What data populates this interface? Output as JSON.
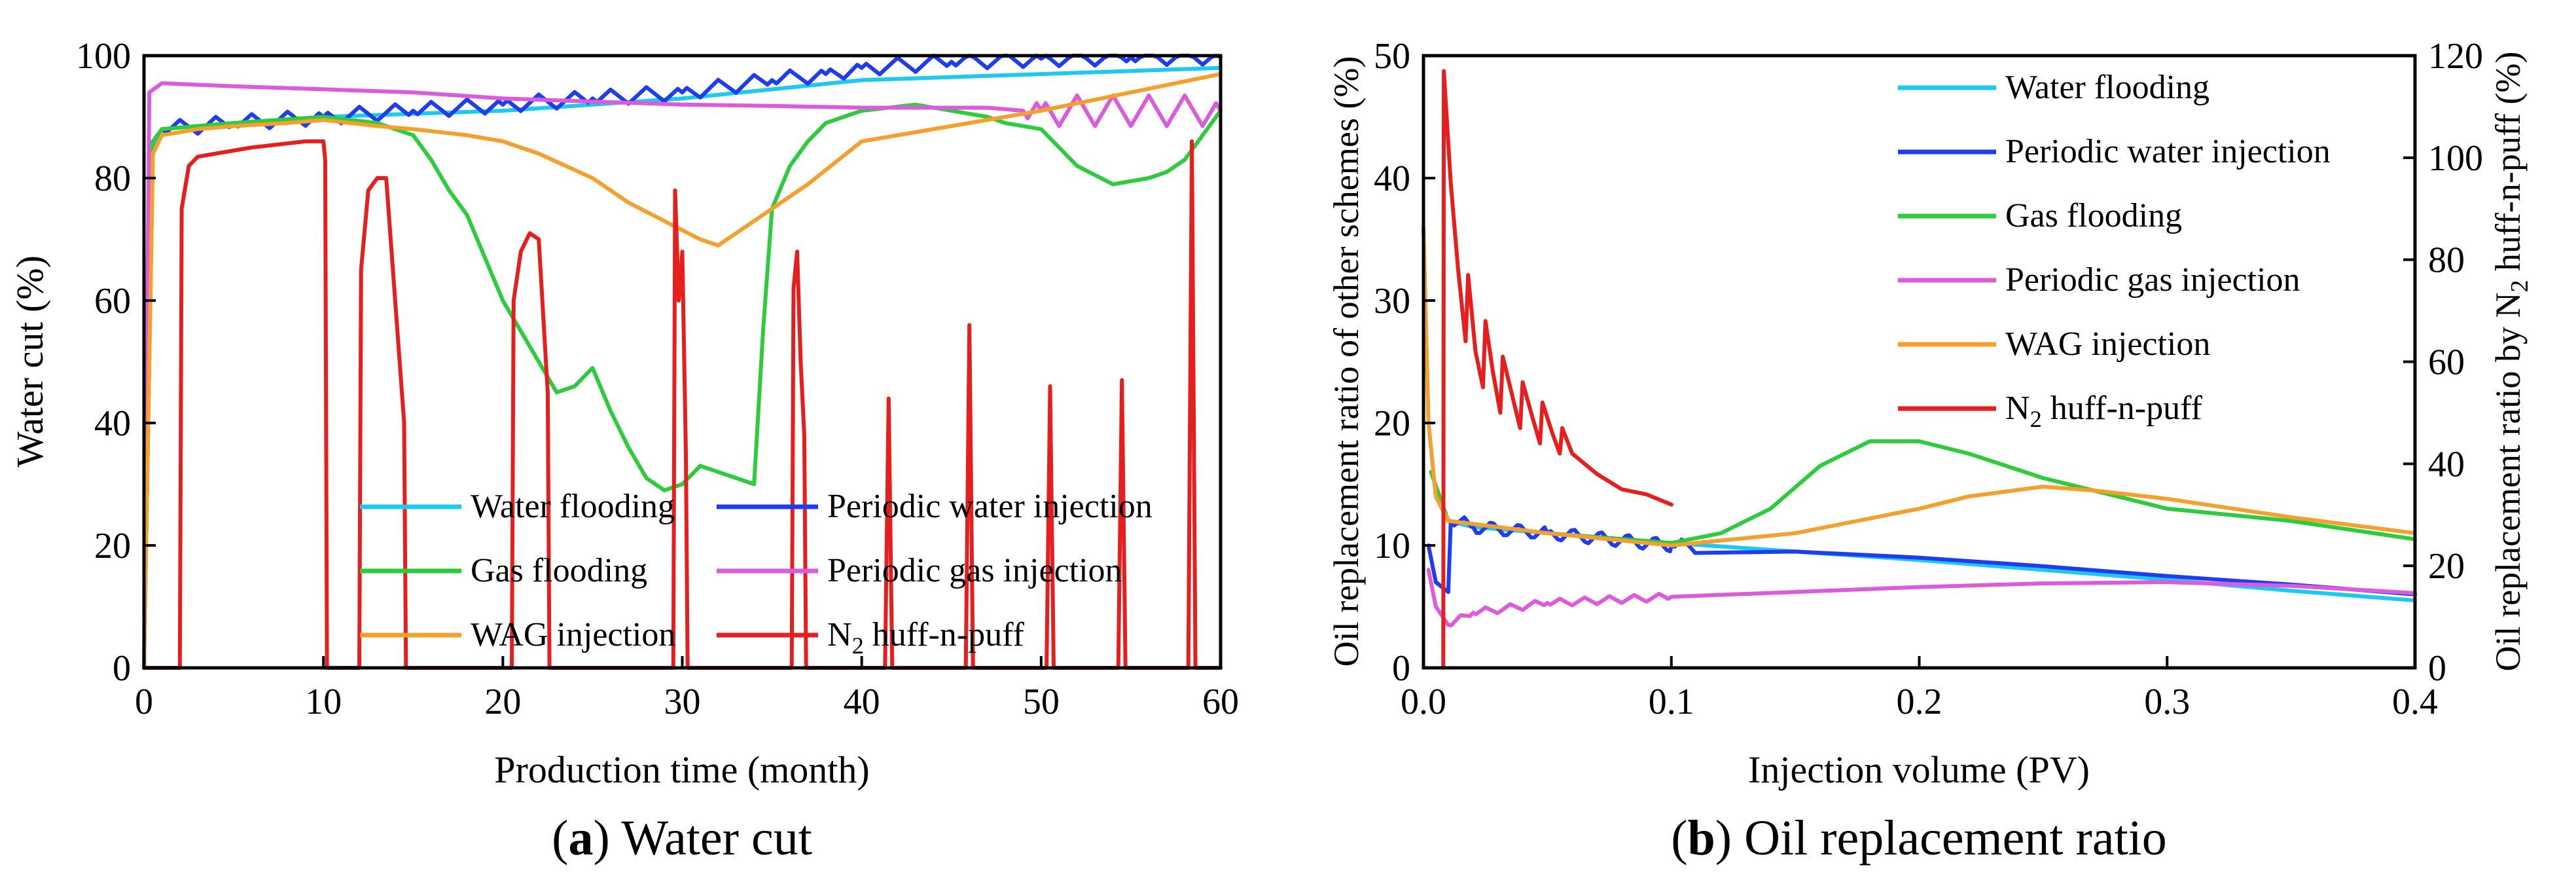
{
  "colors": {
    "water_flooding": "#1ec8f0",
    "periodic_water": "#1e3cf0",
    "gas_flooding": "#2dcc3c",
    "periodic_gas": "#dc5adc",
    "wag": "#f5a02d",
    "n2": "#e61e1e"
  },
  "chart_data": [
    {
      "type": "line",
      "caption_prefix": "(",
      "caption_bold": "a",
      "caption_rest": ") Water cut",
      "xlabel": "Production time (month)",
      "ylabel": "Water cut (%)",
      "xlim": [
        0,
        60
      ],
      "ylim": [
        0,
        100
      ],
      "x_ticks": [
        "0",
        "10",
        "20",
        "30",
        "40",
        "50",
        "60"
      ],
      "y_ticks": [
        "0",
        "20",
        "40",
        "60",
        "80",
        "100"
      ],
      "legend": {
        "placement": "bottom-center",
        "entries": [
          {
            "label": "Water flooding",
            "color_key": "water_flooding"
          },
          {
            "label": "Periodic water injection",
            "color_key": "periodic_water"
          },
          {
            "label": "Gas flooding",
            "color_key": "gas_flooding"
          },
          {
            "label": "Periodic gas injection",
            "color_key": "periodic_gas"
          },
          {
            "label": "WAG injection",
            "color_key": "wag"
          },
          {
            "label": "N",
            "sub": "2",
            "rest": " huff-n-puff",
            "color_key": "n2"
          }
        ]
      },
      "series": [
        {
          "key": "water_flooding",
          "x": [
            0,
            0.5,
            1,
            5,
            10,
            15,
            20,
            25,
            30,
            35,
            40,
            45,
            50,
            55,
            60
          ],
          "y": [
            0,
            85,
            88,
            89,
            90,
            90.5,
            91,
            92,
            93,
            94.5,
            96,
            96.5,
            97,
            97.5,
            98
          ]
        },
        {
          "key": "periodic_water",
          "x": [
            0,
            0.5,
            1,
            5,
            10,
            15,
            20,
            25,
            30,
            35,
            38,
            40,
            45,
            50,
            55,
            60
          ],
          "y": [
            0,
            86,
            88,
            89,
            90,
            91,
            92,
            93,
            94,
            96,
            97,
            98,
            99,
            99.5,
            99.7,
            99.8
          ],
          "oscillation": {
            "from": 1,
            "to": 60,
            "period": 2,
            "amplitude": 2.5
          }
        },
        {
          "key": "gas_flooding",
          "x": [
            0,
            0.5,
            1,
            5,
            10,
            13,
            15,
            16,
            17,
            18,
            19,
            20,
            21,
            22,
            23,
            24,
            25,
            26,
            27,
            28,
            29,
            30,
            31,
            32,
            33,
            34,
            34.5,
            35,
            36,
            37,
            38,
            40,
            43,
            45,
            47,
            48,
            50,
            52,
            54,
            56,
            57,
            58,
            59,
            60
          ],
          "y": [
            0,
            86,
            88,
            89,
            90,
            89,
            87,
            83,
            78,
            74,
            67,
            60,
            55,
            50,
            45,
            46,
            49,
            42,
            36,
            31,
            29,
            30,
            33,
            32,
            31,
            30,
            55,
            75,
            82,
            86,
            89,
            91,
            92,
            91,
            90,
            89,
            88,
            82,
            79,
            80,
            81,
            83,
            87,
            91
          ]
        },
        {
          "key": "periodic_gas",
          "x": [
            0,
            0.3,
            1,
            5,
            10,
            15,
            20,
            25,
            30,
            35,
            40,
            45,
            47,
            49,
            50,
            60
          ],
          "y": [
            0,
            94,
            95.5,
            95,
            94.5,
            94,
            93,
            92.5,
            92,
            91.8,
            91.5,
            91.5,
            91.5,
            91,
            91,
            91
          ],
          "oscillation": {
            "from": 49,
            "to": 60,
            "period": 2,
            "amplitude": 5
          }
        },
        {
          "key": "wag",
          "x": [
            0,
            0.5,
            1,
            3,
            5,
            8,
            10,
            13,
            15,
            18,
            20,
            22,
            25,
            27,
            29,
            31,
            32,
            33,
            34,
            35,
            37,
            40,
            45,
            50,
            55,
            60
          ],
          "y": [
            0,
            84,
            87,
            88,
            88.5,
            89,
            89.5,
            88.5,
            88,
            87,
            86,
            84,
            80,
            76,
            73,
            70,
            69,
            71,
            73,
            75,
            79,
            86,
            88.5,
            91,
            94,
            97
          ]
        },
        {
          "key": "n2",
          "x": [
            0,
            2,
            2.1,
            2.5,
            3,
            4,
            6,
            9,
            10,
            10.1,
            10.2,
            12,
            12.1,
            12.5,
            13,
            13.5,
            14,
            14.5,
            14.6,
            20.5,
            20.6,
            21,
            21.5,
            22,
            22.5,
            22.6,
            29.5,
            29.6,
            29.8,
            30,
            30.2,
            30.3,
            36.1,
            36.2,
            36.4,
            36.6,
            36.8,
            36.9,
            41.3,
            41.5,
            41.7,
            45.8,
            46,
            46.2,
            50.3,
            50.5,
            50.7,
            54.3,
            54.5,
            54.7,
            58.2,
            58.4,
            58.6,
            60
          ],
          "y": [
            0,
            0,
            75,
            82,
            83.5,
            84,
            85,
            86,
            86,
            83,
            0,
            0,
            65,
            78,
            80,
            80,
            60,
            40,
            0,
            0,
            60,
            68,
            71,
            70,
            45,
            0,
            0,
            78,
            60,
            68,
            35,
            0,
            0,
            62,
            68,
            50,
            38,
            0,
            0,
            44,
            0,
            0,
            56,
            0,
            0,
            46,
            0,
            0,
            47,
            0,
            0,
            86,
            0,
            0
          ]
        }
      ]
    },
    {
      "type": "line",
      "caption_prefix": "(",
      "caption_bold": "b",
      "caption_rest": ") Oil replacement ratio",
      "xlabel": "Injection volume (PV)",
      "ylabel": "Oil replacement ratio of other schemes (%)",
      "ylabel_right": "Oil replacement ratio by N",
      "ylabel_right_sub": "2",
      "ylabel_right_rest": " huff-n-puff (%)",
      "xlim": [
        0,
        0.4
      ],
      "ylim": [
        0,
        50
      ],
      "ylim_right": [
        0,
        120
      ],
      "x_ticks": [
        "0.0",
        "0.1",
        "0.2",
        "0.3",
        "0.4"
      ],
      "y_ticks": [
        "0",
        "10",
        "20",
        "30",
        "40",
        "50"
      ],
      "y_ticks_right": [
        "0",
        "20",
        "40",
        "60",
        "80",
        "100",
        "120"
      ],
      "legend": {
        "placement": "top-right",
        "entries": [
          {
            "label": "Water flooding",
            "color_key": "water_flooding"
          },
          {
            "label": "Periodic water injection",
            "color_key": "periodic_water"
          },
          {
            "label": "Gas flooding",
            "color_key": "gas_flooding"
          },
          {
            "label": "Periodic gas injection",
            "color_key": "periodic_gas"
          },
          {
            "label": "WAG injection",
            "color_key": "wag"
          },
          {
            "label": "N",
            "sub": "2",
            "rest": " huff-n-puff",
            "color_key": "n2"
          }
        ]
      },
      "series": [
        {
          "key": "water_flooding",
          "axis": "left",
          "x": [
            0,
            0.002,
            0.005,
            0.01,
            0.02,
            0.05,
            0.1,
            0.15,
            0.2,
            0.25,
            0.3,
            0.35,
            0.4
          ],
          "y": [
            36,
            20,
            14,
            12,
            11.5,
            11,
            10.2,
            9.5,
            8.8,
            8,
            7.2,
            6.3,
            5.5
          ]
        },
        {
          "key": "periodic_water",
          "axis": "left",
          "x": [
            0.002,
            0.005,
            0.01,
            0.011,
            0.02,
            0.05,
            0.1,
            0.15,
            0.2,
            0.25,
            0.3,
            0.35,
            0.4
          ],
          "y": [
            10,
            7,
            6.2,
            12,
            11.5,
            11,
            10,
            9.5,
            9,
            8.3,
            7.5,
            6.8,
            6
          ],
          "oscillation": {
            "from": 0.011,
            "to": 0.11,
            "period": 0.011,
            "amplitude": 1.2
          }
        },
        {
          "key": "gas_flooding",
          "axis": "left",
          "x": [
            0.003,
            0.01,
            0.05,
            0.1,
            0.12,
            0.14,
            0.16,
            0.18,
            0.2,
            0.22,
            0.25,
            0.28,
            0.3,
            0.35,
            0.4
          ],
          "y": [
            16,
            12,
            11,
            10.2,
            11,
            13,
            16.5,
            18.5,
            18.5,
            17.5,
            15.5,
            14,
            13,
            12,
            10.5
          ]
        },
        {
          "key": "periodic_gas",
          "axis": "left",
          "x": [
            0.002,
            0.005,
            0.01,
            0.02,
            0.05,
            0.1,
            0.15,
            0.2,
            0.25,
            0.3,
            0.35,
            0.4
          ],
          "y": [
            8,
            5,
            3.5,
            4.5,
            5.3,
            5.8,
            6.2,
            6.6,
            6.9,
            7,
            6.7,
            6.1
          ],
          "oscillation": {
            "from": 0.01,
            "to": 0.1,
            "period": 0.01,
            "amplitude": 0.6
          }
        },
        {
          "key": "wag",
          "axis": "left",
          "x": [
            0,
            0.002,
            0.005,
            0.01,
            0.05,
            0.1,
            0.15,
            0.2,
            0.22,
            0.25,
            0.27,
            0.3,
            0.35,
            0.4
          ],
          "y": [
            36,
            20,
            14,
            12,
            11,
            10,
            11,
            13,
            14,
            14.8,
            14.5,
            13.8,
            12.3,
            11
          ]
        },
        {
          "key": "n2",
          "axis": "right",
          "x": [
            0.008,
            0.008,
            0.0082,
            0.011,
            0.014,
            0.017,
            0.018,
            0.021,
            0.024,
            0.025,
            0.028,
            0.031,
            0.032,
            0.036,
            0.039,
            0.04,
            0.044,
            0.047,
            0.048,
            0.052,
            0.055,
            0.056,
            0.06,
            0.07,
            0.08,
            0.09,
            0.1
          ],
          "y": [
            0,
            0,
            117,
            95,
            78,
            64,
            77,
            62,
            55,
            68,
            58,
            50,
            61,
            53,
            47,
            56,
            49,
            44,
            52,
            46,
            42,
            47,
            42,
            38,
            35,
            34,
            32
          ]
        }
      ]
    }
  ]
}
